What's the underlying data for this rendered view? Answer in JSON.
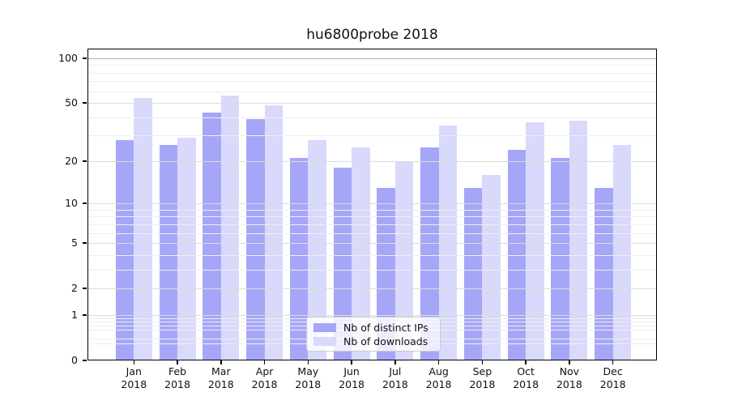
{
  "chart_data": {
    "type": "bar",
    "title": "hu6800probe 2018",
    "categories": [
      "Jan 2018",
      "Feb 2018",
      "Mar 2018",
      "Apr 2018",
      "May 2018",
      "Jun 2018",
      "Jul 2018",
      "Aug 2018",
      "Sep 2018",
      "Oct 2018",
      "Nov 2018",
      "Dec 2018"
    ],
    "series": [
      {
        "name": "Nb of distinct IPs",
        "color": "#a6a6f8",
        "values": [
          28,
          26,
          43,
          39,
          21,
          18,
          13,
          25,
          13,
          24,
          21,
          13
        ]
      },
      {
        "name": "Nb of downloads",
        "color": "#d9d9fb",
        "values": [
          54,
          29,
          56,
          48,
          28,
          25,
          20,
          35,
          16,
          37,
          38,
          26
        ]
      }
    ],
    "xlabel": "",
    "ylabel": "",
    "yscale": "log1p",
    "ylim": [
      0,
      116
    ],
    "y_major_ticks": [
      0,
      1,
      2,
      5,
      10,
      20,
      50,
      100
    ],
    "y_minor_ticks": [
      0.3,
      0.4,
      0.6,
      0.7,
      0.8,
      0.9,
      3,
      4,
      6,
      7,
      8,
      9,
      30,
      40,
      60,
      70,
      80,
      90
    ],
    "grid": true,
    "legend_position": "lower center",
    "colors": {
      "grid_major": "#dcdcdc",
      "grid_minor": "#efefef",
      "grid_top_line": "#b0b0b0",
      "spine": "#000000",
      "background": "#ffffff"
    }
  }
}
